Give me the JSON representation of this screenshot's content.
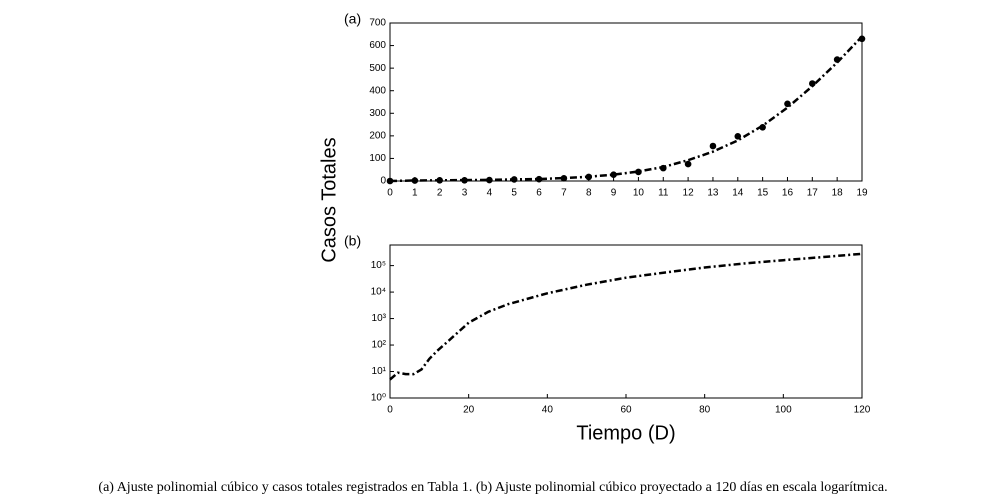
{
  "chart_data": [
    {
      "type": "scatter",
      "panel_label": "(a)",
      "ylabel": "Casos Totales",
      "x": [
        0,
        1,
        2,
        3,
        4,
        5,
        6,
        7,
        8,
        9,
        10,
        11,
        12,
        13,
        14,
        15,
        16,
        17,
        18,
        19
      ],
      "values": [
        0,
        2,
        3,
        3,
        4,
        7,
        8,
        12,
        18,
        28,
        40,
        57,
        75,
        155,
        198,
        238,
        342,
        432,
        538,
        630
      ],
      "fit": [
        0,
        2,
        3,
        4,
        5,
        7,
        9,
        13,
        19,
        28,
        42,
        62,
        92,
        130,
        180,
        245,
        325,
        420,
        525,
        640
      ],
      "color": "#000000",
      "xlim": [
        0,
        19
      ],
      "xticks": [
        0,
        1,
        2,
        3,
        4,
        5,
        6,
        7,
        8,
        9,
        10,
        11,
        12,
        13,
        14,
        15,
        16,
        17,
        18,
        19
      ],
      "ylim": [
        0,
        700
      ],
      "yticks": [
        0,
        100,
        200,
        300,
        400,
        500,
        600,
        700
      ]
    },
    {
      "type": "line",
      "panel_label": "(b)",
      "xlabel": "Tiempo (D)",
      "log_y": true,
      "x": [
        0,
        2,
        4,
        6,
        8,
        10,
        12,
        15,
        20,
        25,
        30,
        40,
        50,
        60,
        70,
        80,
        90,
        100,
        110,
        120
      ],
      "values": [
        5,
        9,
        8,
        8,
        12,
        30,
        60,
        150,
        700,
        1800,
        3500,
        9000,
        19000,
        35000,
        55000,
        85000,
        120000,
        160000,
        210000,
        280000
      ],
      "color": "#000000",
      "xlim": [
        0,
        120
      ],
      "xticks": [
        0,
        20,
        40,
        60,
        80,
        100,
        120
      ],
      "ylim": [
        1,
        600000
      ],
      "yticks": [
        {
          "value": 1,
          "label": "10⁰"
        },
        {
          "value": 10,
          "label": "10¹"
        },
        {
          "value": 100,
          "label": "10²"
        },
        {
          "value": 1000,
          "label": "10³"
        },
        {
          "value": 10000,
          "label": "10⁴"
        },
        {
          "value": 100000,
          "label": "10⁵"
        }
      ]
    }
  ],
  "caption": "(a) Ajuste polinomial cúbico y casos totales registrados en Tabla 1. (b) Ajuste polinomial cúbico proyectado a 120 días en escala logarítmica."
}
